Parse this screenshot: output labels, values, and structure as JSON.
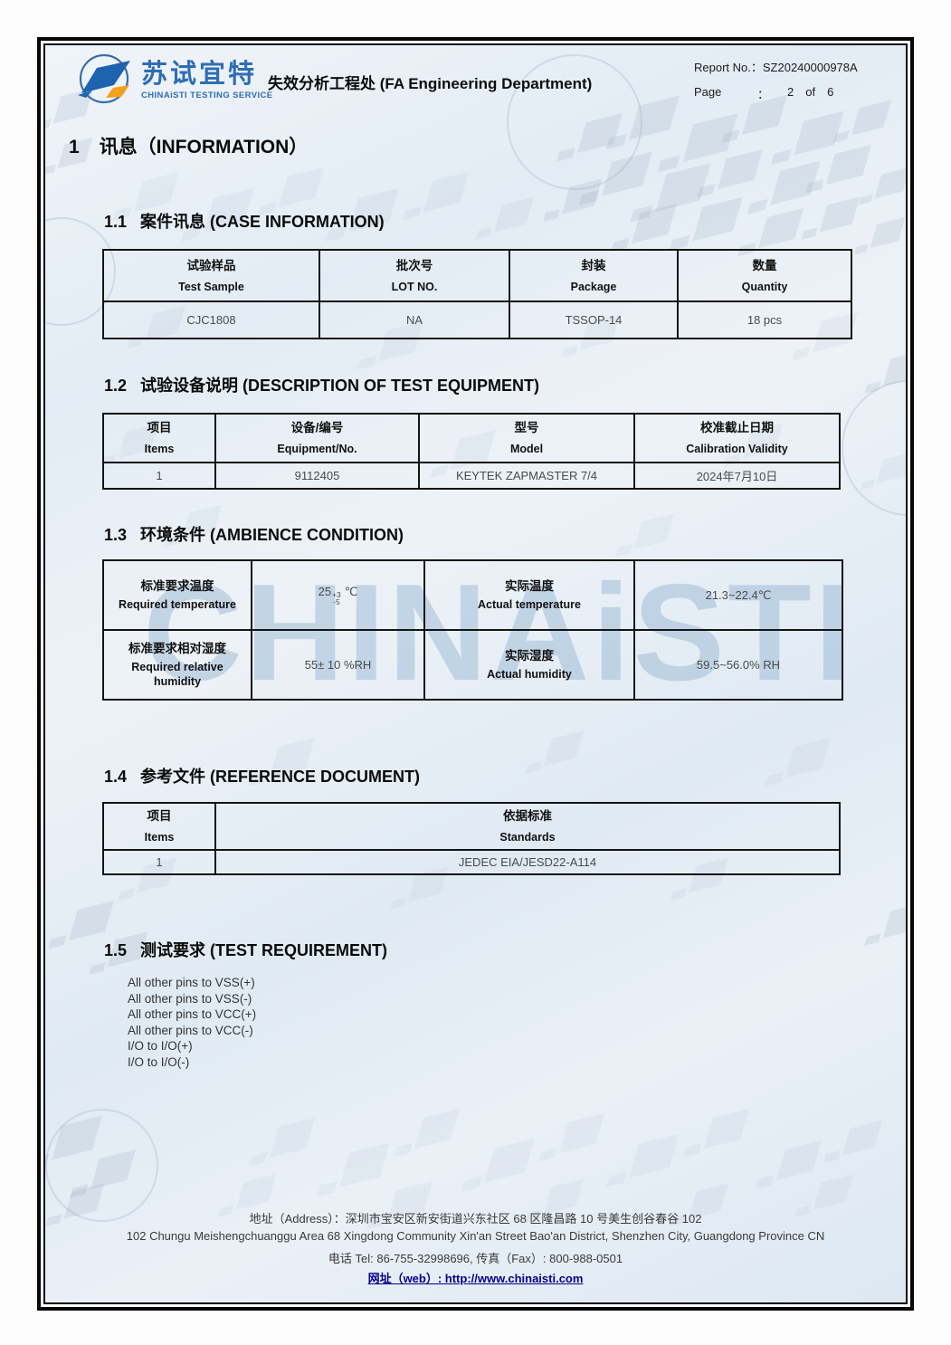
{
  "header": {
    "logo_cn": "苏试宜特",
    "logo_en": "CHINAiSTI TESTING SERVICE",
    "department": "失效分析工程处 (FA Engineering Department)",
    "report_no_label": "Report No.：",
    "report_no_value": "SZ20240000978A",
    "page_label": "Page",
    "page_colon": "：",
    "page_num": "2",
    "page_of": "of",
    "page_total": "6"
  },
  "section1": {
    "number": "1",
    "title": "讯息（INFORMATION）"
  },
  "case_info": {
    "number": "1.1",
    "title": "案件讯息 (CASE INFORMATION)",
    "headers": [
      {
        "cn": "试验样品",
        "en": "Test Sample"
      },
      {
        "cn": "批次号",
        "en": "LOT NO."
      },
      {
        "cn": "封装",
        "en": "Package"
      },
      {
        "cn": "数量",
        "en": "Quantity"
      }
    ],
    "row": {
      "sample": "CJC1808",
      "lot": "NA",
      "package": "TSSOP-14",
      "quantity": "18 pcs"
    }
  },
  "equipment": {
    "number": "1.2",
    "title": "试验设备说明 (DESCRIPTION OF TEST EQUIPMENT)",
    "headers": [
      {
        "cn": "项目",
        "en": "Items"
      },
      {
        "cn": "设备/编号",
        "en": "Equipment/No."
      },
      {
        "cn": "型号",
        "en": "Model"
      },
      {
        "cn": "校准截止日期",
        "en": "Calibration Validity"
      }
    ],
    "row": {
      "item": "1",
      "equipment_no": "9112405",
      "model": "KEYTEK ZAPMASTER 7/4",
      "calibration": "2024年7月10日"
    }
  },
  "ambience": {
    "number": "1.3",
    "title": "环境条件 (AMBIENCE CONDITION)",
    "temp": {
      "req_label_cn": "标准要求温度",
      "req_label_en": "Required temperature",
      "req_base": "25",
      "req_sup": "+3",
      "req_sub": "-5",
      "req_unit": "℃",
      "act_label_cn": "实际温度",
      "act_label_en": "Actual temperature",
      "act_value": "21.3~22.4℃"
    },
    "humidity": {
      "req_label_cn": "标准要求相对湿度",
      "req_label_en": "Required relative humidity",
      "req_value": "55± 10 %RH",
      "act_label_cn": "实际湿度",
      "act_label_en": "Actual humidity",
      "act_value": "59.5~56.0% RH"
    }
  },
  "reference": {
    "number": "1.4",
    "title": "参考文件 (REFERENCE DOCUMENT)",
    "headers": [
      {
        "cn": "项目",
        "en": "Items"
      },
      {
        "cn": "依据标准",
        "en": "Standards"
      }
    ],
    "row": {
      "item": "1",
      "standard": "JEDEC EIA/JESD22-A114"
    }
  },
  "requirement": {
    "number": "1.5",
    "title": "测试要求 (TEST REQUIREMENT)",
    "items": [
      "All other pins to VSS(+)",
      "All other pins to VSS(-)",
      "All other pins to VCC(+)",
      "All other pins to VCC(-)",
      "I/O to I/O(+)",
      "I/O to I/O(-)"
    ]
  },
  "footer": {
    "address_cn": "地址（Address）：深圳市宝安区新安街道兴东社区 68 区隆昌路 10 号美生创谷春谷 102",
    "address_en": "102 Chungu Meishengchuanggu Area 68 Xingdong Community Xin'an Street Bao'an District, Shenzhen City, Guangdong Province CN",
    "tel_fax": "电话 Tel: 86-755-32998696, 传真（Fax）: 800-988-0501",
    "web": "网址（web）: http://www.chinaisti.com"
  },
  "watermark": {
    "text": "CHINAiSTI"
  },
  "colors": {
    "brand_blue": "#2f6db5",
    "brand_orange": "#f5a11c",
    "link_navy": "#00008b",
    "page_bg": "#e5edf5"
  }
}
